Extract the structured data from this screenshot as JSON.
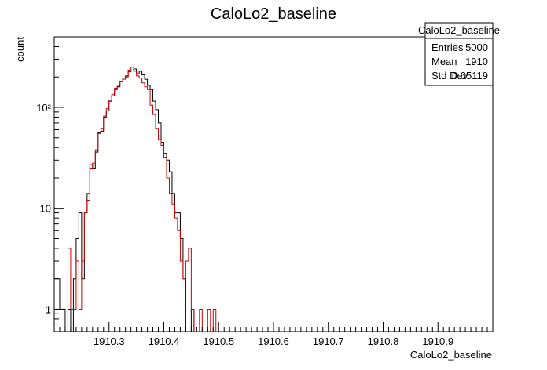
{
  "chart_data": {
    "type": "histogram",
    "title": "CaloLo2_baseline",
    "xlabel": "CaloLo2_baseline",
    "ylabel": "count",
    "y_scale": "log",
    "xlim": [
      1910.2,
      1911.0
    ],
    "ylim": [
      0.6,
      500
    ],
    "x_ticks": [
      1910.3,
      1910.4,
      1910.5,
      1910.6,
      1910.7,
      1910.8,
      1910.9
    ],
    "x_tick_labels": [
      "1910.3",
      "1910.4",
      "1910.5",
      "1910.6",
      "1910.7",
      "1910.8",
      "1910.9"
    ],
    "y_ticks": [
      1,
      10,
      100
    ],
    "y_tick_labels": [
      "1",
      "10",
      "10²"
    ],
    "grid": false,
    "bin_width": 0.005,
    "series": [
      {
        "color": "#000000",
        "bins": [
          [
            1910.2,
            2
          ],
          [
            1910.205,
            2
          ],
          [
            1910.21,
            1
          ],
          [
            1910.215,
            1
          ],
          [
            1910.22,
            0
          ],
          [
            1910.225,
            1
          ],
          [
            1910.23,
            0
          ],
          [
            1910.235,
            2
          ],
          [
            1910.24,
            5
          ],
          [
            1910.245,
            9
          ],
          [
            1910.25,
            2
          ],
          [
            1910.255,
            9
          ],
          [
            1910.26,
            14
          ],
          [
            1910.265,
            27
          ],
          [
            1910.27,
            25
          ],
          [
            1910.275,
            36
          ],
          [
            1910.28,
            56
          ],
          [
            1910.285,
            58
          ],
          [
            1910.29,
            80
          ],
          [
            1910.295,
            92
          ],
          [
            1910.3,
            115
          ],
          [
            1910.305,
            130
          ],
          [
            1910.31,
            150
          ],
          [
            1910.315,
            160
          ],
          [
            1910.32,
            180
          ],
          [
            1910.325,
            195
          ],
          [
            1910.33,
            205
          ],
          [
            1910.335,
            225
          ],
          [
            1910.34,
            230
          ],
          [
            1910.345,
            240
          ],
          [
            1910.35,
            215
          ],
          [
            1910.355,
            228
          ],
          [
            1910.36,
            210
          ],
          [
            1910.365,
            190
          ],
          [
            1910.37,
            165
          ],
          [
            1910.375,
            150
          ],
          [
            1910.38,
            115
          ],
          [
            1910.385,
            95
          ],
          [
            1910.39,
            70
          ],
          [
            1910.395,
            45
          ],
          [
            1910.4,
            35
          ],
          [
            1910.405,
            30
          ],
          [
            1910.41,
            23
          ],
          [
            1910.415,
            14
          ],
          [
            1910.42,
            9
          ],
          [
            1910.425,
            9
          ],
          [
            1910.43,
            5
          ],
          [
            1910.435,
            2
          ],
          [
            1910.44,
            0.6
          ],
          [
            1910.445,
            0.6
          ],
          [
            1910.45,
            1
          ],
          [
            1910.455,
            0.6
          ]
        ]
      },
      {
        "color": "#cc0000",
        "bins": [
          [
            1910.225,
            4
          ],
          [
            1910.23,
            1
          ],
          [
            1910.235,
            1
          ],
          [
            1910.24,
            3
          ],
          [
            1910.245,
            1
          ],
          [
            1910.25,
            3
          ],
          [
            1910.255,
            9
          ],
          [
            1910.26,
            12
          ],
          [
            1910.265,
            25
          ],
          [
            1910.27,
            28
          ],
          [
            1910.275,
            38
          ],
          [
            1910.28,
            55
          ],
          [
            1910.285,
            62
          ],
          [
            1910.29,
            82
          ],
          [
            1910.295,
            97
          ],
          [
            1910.3,
            118
          ],
          [
            1910.305,
            135
          ],
          [
            1910.31,
            155
          ],
          [
            1910.315,
            162
          ],
          [
            1910.32,
            182
          ],
          [
            1910.325,
            190
          ],
          [
            1910.33,
            200
          ],
          [
            1910.335,
            235
          ],
          [
            1910.34,
            250
          ],
          [
            1910.345,
            228
          ],
          [
            1910.35,
            205
          ],
          [
            1910.355,
            195
          ],
          [
            1910.36,
            175
          ],
          [
            1910.365,
            160
          ],
          [
            1910.37,
            150
          ],
          [
            1910.375,
            105
          ],
          [
            1910.38,
            85
          ],
          [
            1910.385,
            62
          ],
          [
            1910.39,
            48
          ],
          [
            1910.395,
            42
          ],
          [
            1910.4,
            32
          ],
          [
            1910.405,
            20
          ],
          [
            1910.41,
            14
          ],
          [
            1910.415,
            11
          ],
          [
            1910.42,
            8
          ],
          [
            1910.425,
            6
          ],
          [
            1910.43,
            3
          ],
          [
            1910.435,
            2
          ],
          [
            1910.44,
            3
          ],
          [
            1910.445,
            4
          ],
          [
            1910.45,
            1
          ],
          [
            1910.455,
            0.6
          ],
          [
            1910.46,
            0.6
          ],
          [
            1910.465,
            1
          ],
          [
            1910.47,
            0.6
          ],
          [
            1910.475,
            0.6
          ],
          [
            1910.48,
            1
          ],
          [
            1910.485,
            0.6
          ],
          [
            1910.49,
            1
          ],
          [
            1910.495,
            0.6
          ]
        ]
      }
    ],
    "stats_box": {
      "title": "CaloLo2_baseline",
      "rows": [
        {
          "label": "Entries",
          "value": "5000"
        },
        {
          "label": "Mean",
          "value": "1910"
        },
        {
          "label": "Std Dev",
          "value": "0.05119"
        }
      ]
    }
  }
}
